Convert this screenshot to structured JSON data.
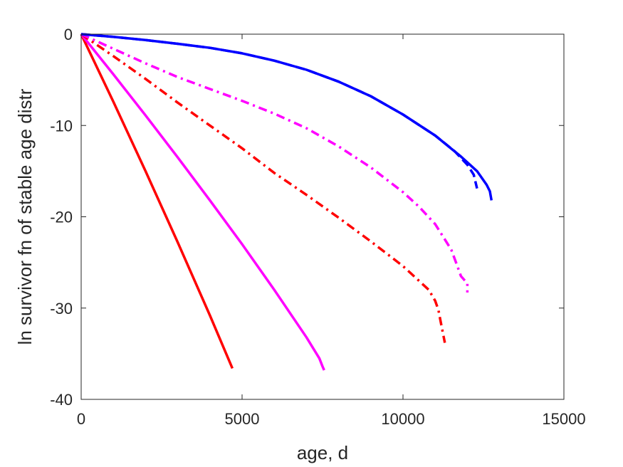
{
  "chart_data": {
    "type": "line",
    "xlabel": "age, d",
    "ylabel": "ln survivor fn of stable age distr",
    "xlim": [
      0,
      15000
    ],
    "ylim": [
      -40,
      0
    ],
    "xticks": [
      0,
      5000,
      10000,
      15000
    ],
    "yticks": [
      0,
      -10,
      -20,
      -30,
      -40
    ],
    "xtick_labels": [
      "0",
      "5000",
      "10000",
      "15000"
    ],
    "ytick_labels": [
      "0",
      "-10",
      "-20",
      "-30",
      "-40"
    ],
    "grid": false,
    "legend": "none",
    "series": [
      {
        "color": "#ff0000",
        "style": "solid",
        "points": [
          [
            0,
            0
          ],
          [
            1000,
            -7.4
          ],
          [
            2000,
            -15.0
          ],
          [
            3000,
            -22.8
          ],
          [
            4000,
            -30.8
          ],
          [
            4700,
            -36.6
          ]
        ]
      },
      {
        "color": "#ff00ff",
        "style": "solid",
        "points": [
          [
            0,
            0
          ],
          [
            1000,
            -4.4
          ],
          [
            2000,
            -8.9
          ],
          [
            3000,
            -13.5
          ],
          [
            4000,
            -18.2
          ],
          [
            5000,
            -23.0
          ],
          [
            6000,
            -28.0
          ],
          [
            7000,
            -33.2
          ],
          [
            7400,
            -35.5
          ],
          [
            7500,
            -36.4
          ],
          [
            7550,
            -36.8
          ]
        ]
      },
      {
        "color": "#ff0000",
        "style": "dashdot",
        "points": [
          [
            0,
            0
          ],
          [
            1000,
            -2.4
          ],
          [
            2000,
            -4.9
          ],
          [
            3000,
            -7.5
          ],
          [
            4000,
            -10.0
          ],
          [
            5000,
            -12.5
          ],
          [
            6000,
            -15.2
          ],
          [
            7000,
            -17.6
          ],
          [
            8000,
            -20.1
          ],
          [
            9000,
            -22.7
          ],
          [
            10000,
            -25.4
          ],
          [
            10800,
            -28.0
          ],
          [
            11000,
            -29.2
          ],
          [
            11100,
            -30.2
          ],
          [
            11200,
            -32.0
          ],
          [
            11300,
            -33.8
          ]
        ]
      },
      {
        "color": "#ff00ff",
        "style": "dashdot",
        "points": [
          [
            0,
            0
          ],
          [
            1000,
            -1.6
          ],
          [
            2000,
            -3.2
          ],
          [
            3000,
            -4.7
          ],
          [
            4000,
            -6.0
          ],
          [
            5000,
            -7.3
          ],
          [
            6000,
            -8.7
          ],
          [
            7000,
            -10.3
          ],
          [
            8000,
            -12.3
          ],
          [
            9000,
            -14.6
          ],
          [
            10000,
            -17.3
          ],
          [
            10500,
            -18.9
          ],
          [
            11000,
            -20.8
          ],
          [
            11500,
            -23.6
          ],
          [
            11700,
            -25.5
          ],
          [
            11800,
            -26.5
          ],
          [
            11900,
            -26.9
          ],
          [
            12000,
            -27.3
          ],
          [
            12000,
            -28.3
          ]
        ]
      },
      {
        "color": "#0000ff",
        "style": "dashed",
        "points": [
          [
            0,
            0
          ],
          [
            1000,
            -0.3
          ],
          [
            2000,
            -0.65
          ],
          [
            3000,
            -1.05
          ],
          [
            4000,
            -1.5
          ],
          [
            5000,
            -2.1
          ],
          [
            6000,
            -2.9
          ],
          [
            7000,
            -3.9
          ],
          [
            8000,
            -5.2
          ],
          [
            9000,
            -6.8
          ],
          [
            10000,
            -8.8
          ],
          [
            11000,
            -11.1
          ],
          [
            11600,
            -12.8
          ],
          [
            12000,
            -14.3
          ],
          [
            12200,
            -15.4
          ],
          [
            12300,
            -16.9
          ]
        ]
      },
      {
        "color": "#0000ff",
        "style": "solid",
        "points": [
          [
            0,
            0
          ],
          [
            1000,
            -0.3
          ],
          [
            2000,
            -0.65
          ],
          [
            3000,
            -1.05
          ],
          [
            4000,
            -1.5
          ],
          [
            5000,
            -2.1
          ],
          [
            6000,
            -2.9
          ],
          [
            7000,
            -3.9
          ],
          [
            8000,
            -5.2
          ],
          [
            9000,
            -6.8
          ],
          [
            10000,
            -8.8
          ],
          [
            11000,
            -11.1
          ],
          [
            11800,
            -13.4
          ],
          [
            12300,
            -15.0
          ],
          [
            12600,
            -16.5
          ],
          [
            12700,
            -17.2
          ],
          [
            12750,
            -18.2
          ]
        ]
      }
    ]
  }
}
